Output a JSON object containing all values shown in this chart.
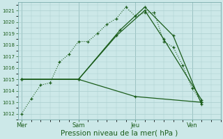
{
  "background_color": "#cce8e8",
  "grid_color": "#aacece",
  "line_color": "#1a5c1a",
  "xlabel": "Pression niveau de la mer( hPa )",
  "xlabel_fontsize": 7.5,
  "ylim": [
    1011.5,
    1021.7
  ],
  "yticks": [
    1012,
    1013,
    1014,
    1015,
    1016,
    1017,
    1018,
    1019,
    1020,
    1021
  ],
  "xtick_labels": [
    "Mer",
    "Sam",
    "Jeu",
    "Ven"
  ],
  "xtick_positions": [
    0,
    3,
    6,
    9
  ],
  "xlim": [
    -0.2,
    10.5
  ],
  "series": [
    {
      "style": "dotted",
      "x": [
        0,
        0.5,
        1.0,
        1.5,
        2.0,
        2.5,
        3.0,
        3.5,
        4.0,
        4.5,
        5.0,
        5.5,
        6.0,
        6.5,
        7.0,
        7.5,
        8.0,
        8.5,
        9.0,
        9.5
      ],
      "y": [
        1012.0,
        1013.3,
        1014.5,
        1014.7,
        1016.5,
        1017.2,
        1018.3,
        1018.3,
        1019.0,
        1019.8,
        1020.3,
        1021.3,
        1020.5,
        1020.8,
        1020.8,
        1018.3,
        1017.8,
        1016.2,
        1014.2,
        1013.0
      ]
    },
    {
      "style": "solid",
      "x": [
        0,
        3,
        5,
        6.5,
        7.5,
        9.5
      ],
      "y": [
        1015.0,
        1015.0,
        1018.8,
        1021.0,
        1018.5,
        1013.2
      ]
    },
    {
      "style": "solid",
      "x": [
        0,
        3,
        5.2,
        6.5,
        8.0,
        9.5
      ],
      "y": [
        1015.0,
        1015.0,
        1019.3,
        1021.3,
        1018.8,
        1012.8
      ]
    },
    {
      "style": "solid",
      "x": [
        0,
        3,
        6,
        9.5
      ],
      "y": [
        1015.0,
        1015.0,
        1013.5,
        1013.0
      ]
    }
  ]
}
